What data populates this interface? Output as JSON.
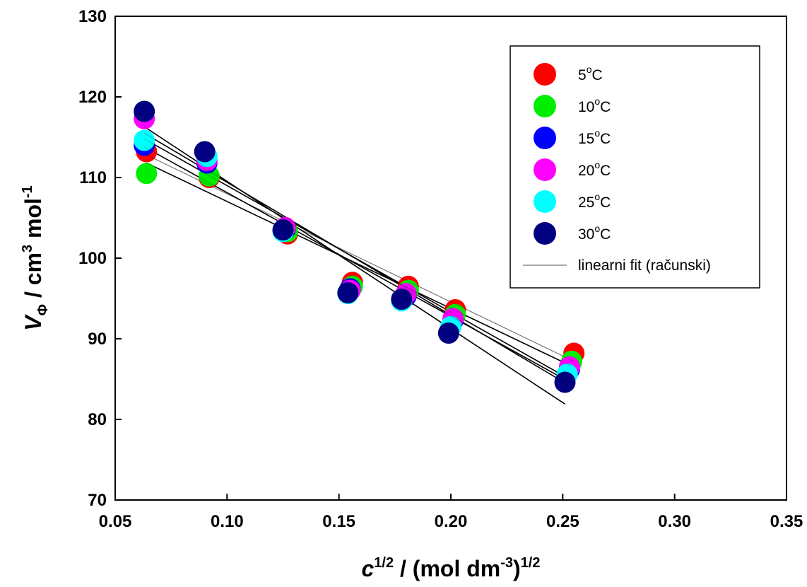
{
  "chart_data": {
    "type": "scatter",
    "title": "",
    "xlabel": {
      "var": "c",
      "sup1": "1/2",
      "mid": " / (mol dm",
      "sup2": "-3",
      "close": ")",
      "sup3": "1/2"
    },
    "ylabel": {
      "var": "V",
      "sub": "Φ",
      "mid": " / cm",
      "sup1": "3",
      "mid2": " mol",
      "sup2": "-1"
    },
    "xlim": [
      0.05,
      0.35
    ],
    "ylim": [
      70,
      130
    ],
    "x_ticks": [
      "0.05",
      "0.10",
      "0.15",
      "0.20",
      "0.25",
      "0.30",
      "0.35"
    ],
    "y_ticks": [
      "70",
      "80",
      "90",
      "100",
      "110",
      "120",
      "130"
    ],
    "grid": false,
    "legend_position": "top-right",
    "fit_label": "linearni fit (računski)",
    "series": [
      {
        "name": "5",
        "unit": "C",
        "color": "#ff0000",
        "x": [
          0.064,
          0.092,
          0.127,
          0.156,
          0.181,
          0.202,
          0.255
        ],
        "y": [
          113.2,
          110.0,
          103.0,
          97.0,
          96.5,
          93.6,
          88.2
        ],
        "fit": [
          112.8,
          87.2
        ]
      },
      {
        "name": "10",
        "unit": "C",
        "color": "#00ee00",
        "x": [
          0.064,
          0.092,
          0.127,
          0.156,
          0.181,
          0.202,
          0.254
        ],
        "y": [
          110.5,
          110.2,
          103.3,
          96.5,
          96.0,
          93.0,
          87.2
        ],
        "fit": [
          111.8,
          86.6
        ]
      },
      {
        "name": "15",
        "unit": "C",
        "color": "#0000ff",
        "x": [
          0.063,
          0.091,
          0.126,
          0.155,
          0.18,
          0.201,
          0.253
        ],
        "y": [
          114.0,
          111.8,
          103.6,
          96.2,
          95.3,
          92.3,
          86.2
        ],
        "fit": [
          114.8,
          85.0
        ]
      },
      {
        "name": "20",
        "unit": "C",
        "color": "#ff00ff",
        "x": [
          0.063,
          0.091,
          0.126,
          0.155,
          0.18,
          0.201,
          0.253
        ],
        "y": [
          117.3,
          112.1,
          103.8,
          96.0,
          95.6,
          92.5,
          86.5
        ],
        "fit": [
          115.5,
          84.2
        ]
      },
      {
        "name": "25",
        "unit": "C",
        "color": "#00ffff",
        "x": [
          0.063,
          0.091,
          0.125,
          0.154,
          0.178,
          0.2,
          0.252
        ],
        "y": [
          114.6,
          112.6,
          103.3,
          95.6,
          94.7,
          91.5,
          85.6
        ],
        "fit": [
          113.8,
          84.8
        ]
      },
      {
        "name": "30",
        "unit": "C",
        "color": "#000080",
        "x": [
          0.063,
          0.09,
          0.125,
          0.154,
          0.178,
          0.199,
          0.251
        ],
        "y": [
          118.2,
          113.2,
          103.5,
          95.7,
          94.9,
          90.7,
          84.6
        ],
        "fit": [
          116.3,
          81.9
        ]
      }
    ]
  }
}
